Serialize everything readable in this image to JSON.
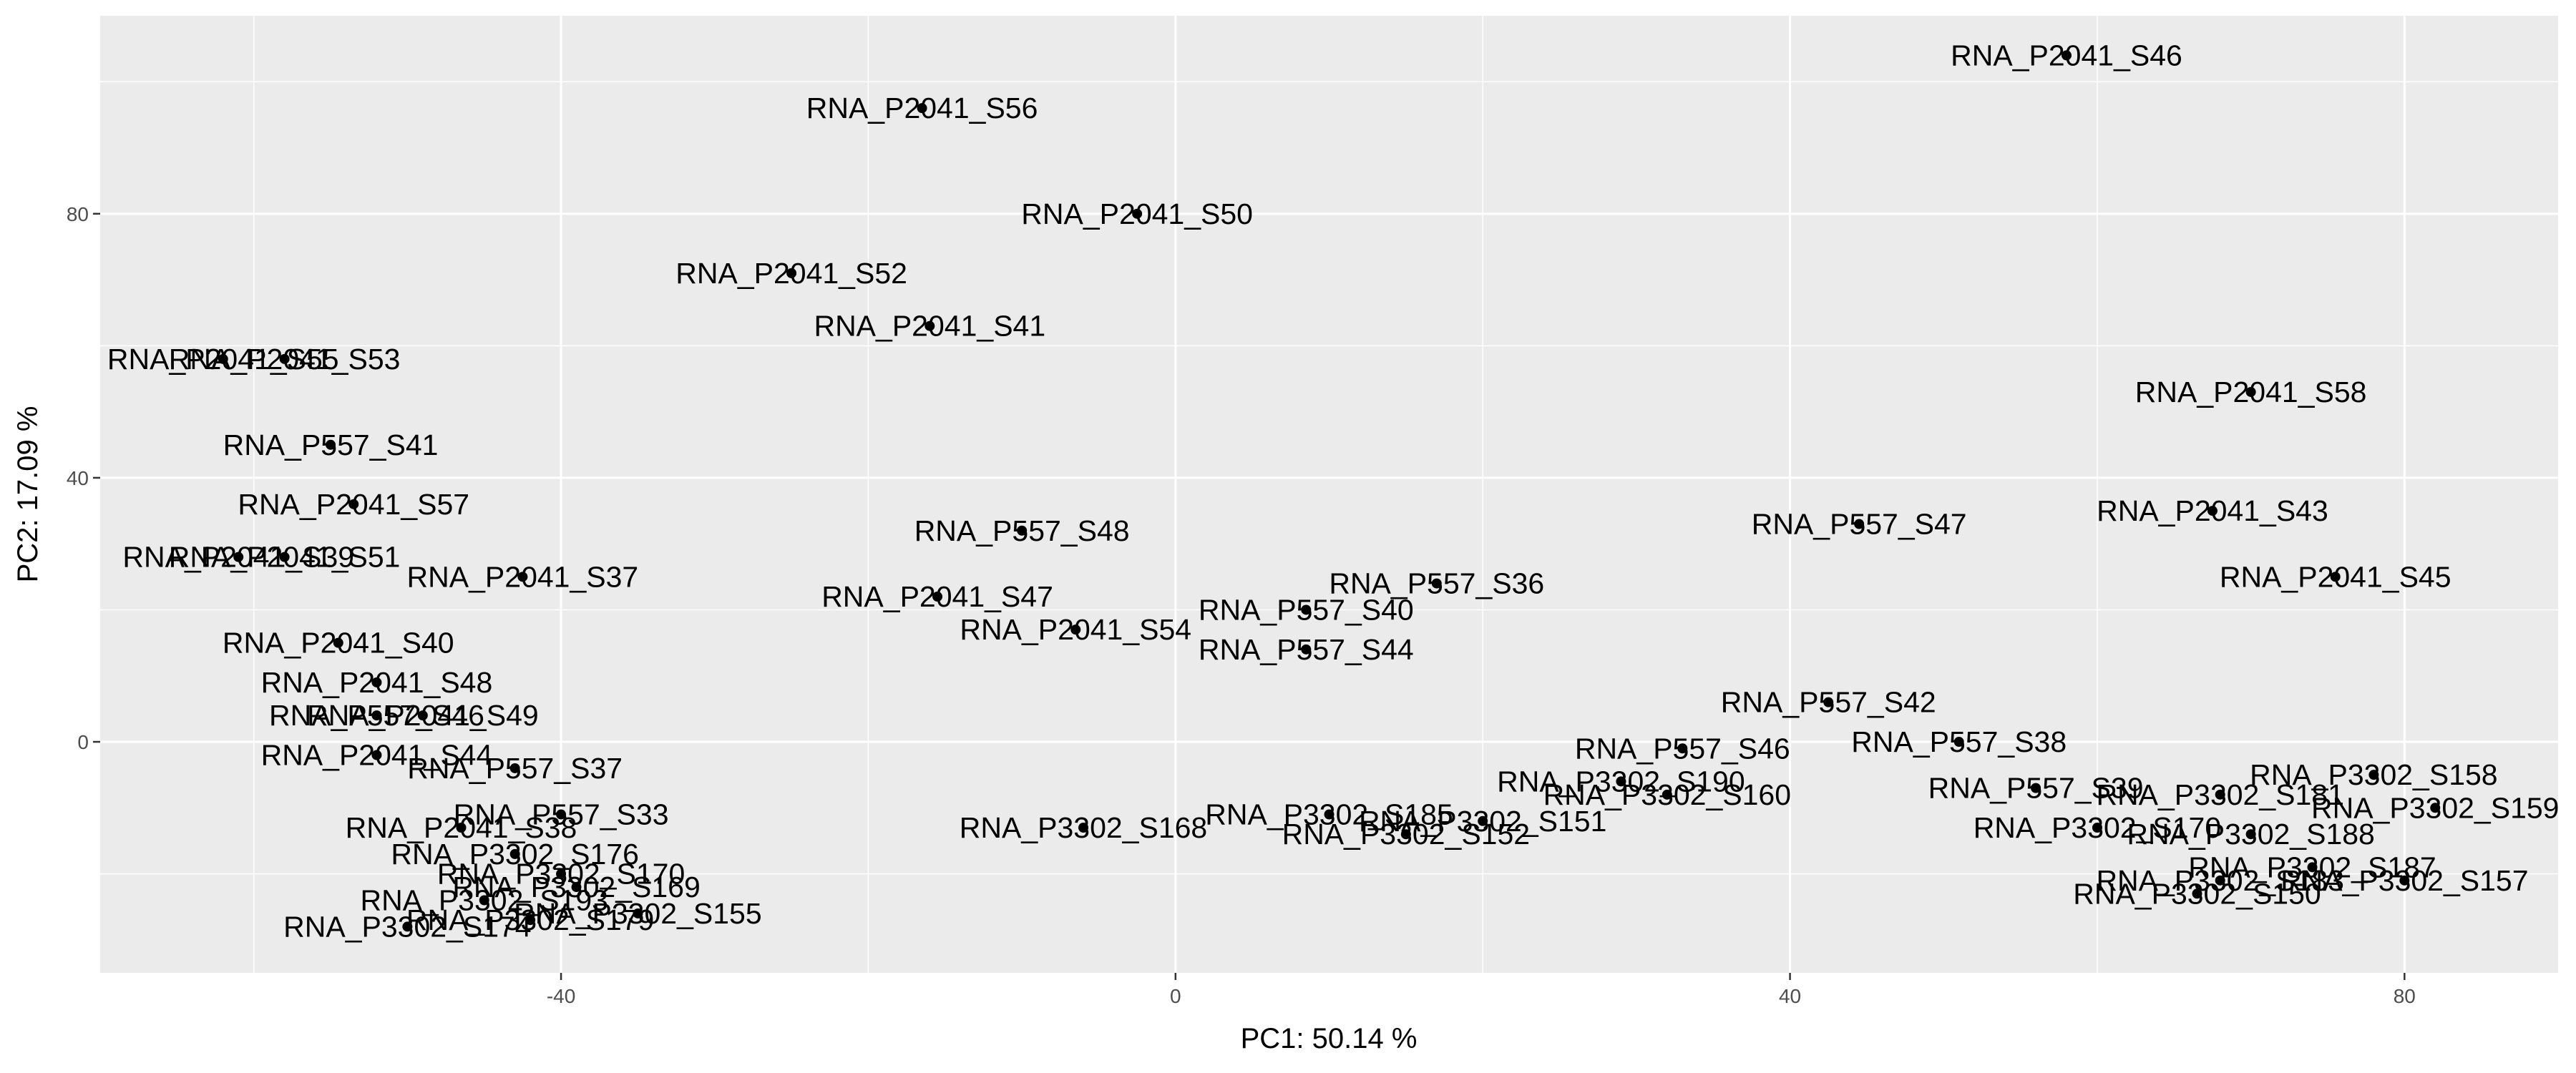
{
  "chart_data": {
    "type": "scatter",
    "xlabel": "PC1: 50.14 %",
    "ylabel": "PC2: 17.09 %",
    "xlim": [
      -70,
      90
    ],
    "ylim": [
      -35,
      110
    ],
    "x_ticks": [
      -40,
      0,
      40,
      80
    ],
    "y_ticks": [
      0,
      40,
      80
    ],
    "grid": true,
    "points": [
      {
        "label": "RNA_P2041_S46",
        "x": 58,
        "y": 104
      },
      {
        "label": "RNA_P2041_S56",
        "x": -16.5,
        "y": 96
      },
      {
        "label": "RNA_P2041_S50",
        "x": -2.5,
        "y": 80
      },
      {
        "label": "RNA_P2041_S52",
        "x": -25,
        "y": 71
      },
      {
        "label": "RNA_P2041_S41",
        "x": -16,
        "y": 63
      },
      {
        "label": "RNA_P2041_S55",
        "x": -62,
        "y": 58
      },
      {
        "label": "RNA_P2041_S53",
        "x": -58,
        "y": 58
      },
      {
        "label": "RNA_P2041_S58",
        "x": 70,
        "y": 53
      },
      {
        "label": "RNA_P557_S41",
        "x": -55,
        "y": 45
      },
      {
        "label": "RNA_P2041_S57",
        "x": -53.5,
        "y": 36
      },
      {
        "label": "RNA_P2041_S43",
        "x": 67.5,
        "y": 35
      },
      {
        "label": "RNA_P557_S47",
        "x": 44.5,
        "y": 33
      },
      {
        "label": "RNA_P557_S48",
        "x": -10,
        "y": 32
      },
      {
        "label": "RNA_P2041_S39",
        "x": -61,
        "y": 28
      },
      {
        "label": "RNA_P2041_S51",
        "x": -58,
        "y": 28
      },
      {
        "label": "RNA_P2041_S37",
        "x": -42.5,
        "y": 25
      },
      {
        "label": "RNA_P2041_S45",
        "x": 75.5,
        "y": 25
      },
      {
        "label": "RNA_P557_S36",
        "x": 17,
        "y": 24
      },
      {
        "label": "RNA_P2041_S47",
        "x": -15.5,
        "y": 22
      },
      {
        "label": "RNA_P557_S40",
        "x": 8.5,
        "y": 20
      },
      {
        "label": "RNA_P2041_S54",
        "x": -6.5,
        "y": 17
      },
      {
        "label": "RNA_P2041_S40",
        "x": -54.5,
        "y": 15
      },
      {
        "label": "RNA_P557_S44",
        "x": 8.5,
        "y": 14
      },
      {
        "label": "RNA_P2041_S48",
        "x": -52,
        "y": 9
      },
      {
        "label": "RNA_P557_S42",
        "x": 42.5,
        "y": 6
      },
      {
        "label": "RNA_P557_S46",
        "x": -52,
        "y": 4
      },
      {
        "label": "RNA_P2041_S49",
        "x": -49,
        "y": 4
      },
      {
        "label": "RNA_P557_S46",
        "x": 33,
        "y": -1
      },
      {
        "label": "RNA_P557_S38",
        "x": 51,
        "y": 0
      },
      {
        "label": "RNA_P2041_S44",
        "x": -52,
        "y": -2
      },
      {
        "label": "RNA_P557_S37",
        "x": -43,
        "y": -4
      },
      {
        "label": "RNA_P3302_S158",
        "x": 78,
        "y": -5
      },
      {
        "label": "RNA_P3302_S190",
        "x": 29,
        "y": -6
      },
      {
        "label": "RNA_P3302_S160",
        "x": 32,
        "y": -8
      },
      {
        "label": "RNA_P557_S39",
        "x": 56,
        "y": -7
      },
      {
        "label": "RNA_P3302_S181",
        "x": 68,
        "y": -8
      },
      {
        "label": "RNA_P3302_S159",
        "x": 82,
        "y": -10
      },
      {
        "label": "RNA_P557_S33",
        "x": -40,
        "y": -11
      },
      {
        "label": "RNA_P3302_S185",
        "x": 10,
        "y": -11
      },
      {
        "label": "RNA_P3302_S151",
        "x": 20,
        "y": -12
      },
      {
        "label": "RNA_P3302_S152",
        "x": 15,
        "y": -14
      },
      {
        "label": "RNA_P3302_S168",
        "x": -6,
        "y": -13
      },
      {
        "label": "RNA_P2041_S38",
        "x": -46.5,
        "y": -13
      },
      {
        "label": "RNA_P3302_S170",
        "x": 60,
        "y": -13
      },
      {
        "label": "RNA_P3302_S188",
        "x": 70,
        "y": -14
      },
      {
        "label": "RNA_P3302_S176",
        "x": -43,
        "y": -17
      },
      {
        "label": "RNA_P3302_S187",
        "x": 74,
        "y": -19
      },
      {
        "label": "RNA_P3302_S170",
        "x": -40,
        "y": -20
      },
      {
        "label": "RNA_P3302_S183",
        "x": 68,
        "y": -21
      },
      {
        "label": "RNA_P3302_S157",
        "x": 80,
        "y": -21
      },
      {
        "label": "RNA_P3302_S150",
        "x": 66.5,
        "y": -23
      },
      {
        "label": "RNA_P3302_S169",
        "x": -39,
        "y": -22
      },
      {
        "label": "RNA_P3302_S193",
        "x": -45,
        "y": -24
      },
      {
        "label": "RNA_P3302_S155",
        "x": -35,
        "y": -26
      },
      {
        "label": "RNA_P3302_S179",
        "x": -42,
        "y": -27
      },
      {
        "label": "RNA_P3302_S174",
        "x": -50,
        "y": -28
      }
    ]
  }
}
